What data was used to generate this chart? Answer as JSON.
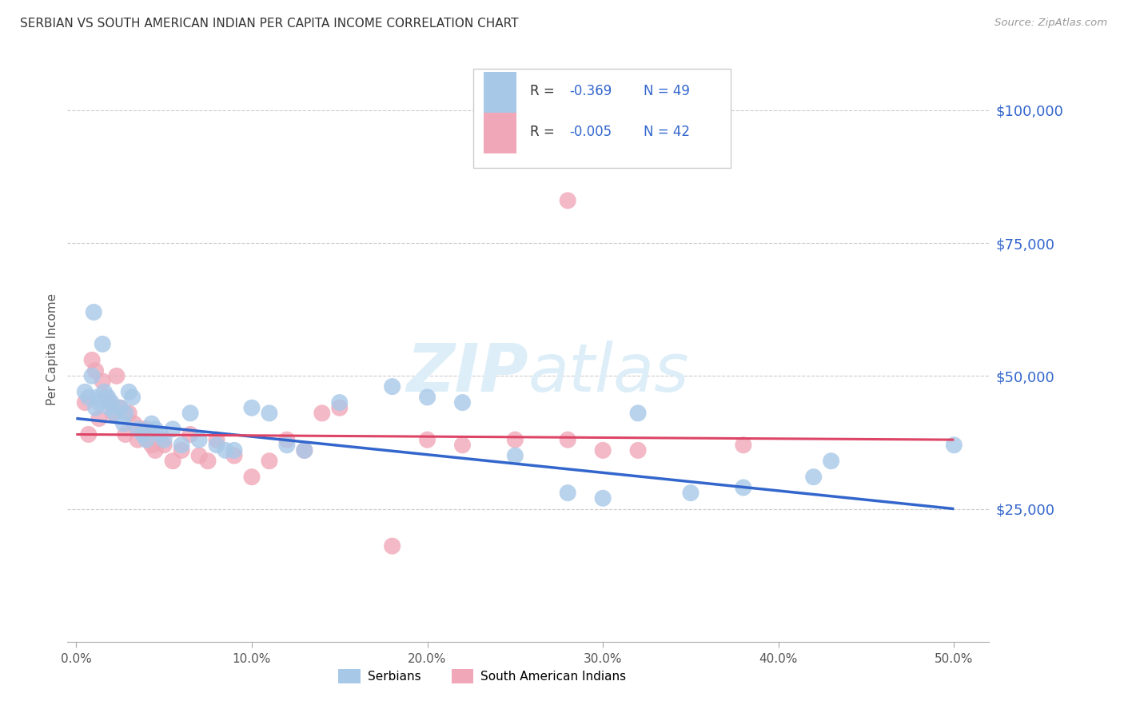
{
  "title": "SERBIAN VS SOUTH AMERICAN INDIAN PER CAPITA INCOME CORRELATION CHART",
  "source": "Source: ZipAtlas.com",
  "ylabel": "Per Capita Income",
  "xlabel_ticks": [
    "0.0%",
    "10.0%",
    "20.0%",
    "30.0%",
    "40.0%",
    "50.0%"
  ],
  "xlabel_vals": [
    0.0,
    0.1,
    0.2,
    0.3,
    0.4,
    0.5
  ],
  "ytick_labels": [
    "$25,000",
    "$50,000",
    "$75,000",
    "$100,000"
  ],
  "ytick_vals": [
    25000,
    50000,
    75000,
    100000
  ],
  "ylim": [
    0,
    110000
  ],
  "xlim": [
    -0.005,
    0.52
  ],
  "r_serbian": -0.369,
  "n_serbian": 49,
  "r_south_american": -0.005,
  "n_south_american": 42,
  "serbian_color": "#a8c8e8",
  "south_american_color": "#f0a8b8",
  "trend_serbian_color": "#3366cc",
  "trend_south_american_color": "#dd4466",
  "watermark_color": "#ddeef8",
  "serbian_points": [
    [
      0.005,
      47000
    ],
    [
      0.007,
      46000
    ],
    [
      0.009,
      50000
    ],
    [
      0.01,
      62000
    ],
    [
      0.011,
      44000
    ],
    [
      0.012,
      46000
    ],
    [
      0.013,
      45000
    ],
    [
      0.015,
      56000
    ],
    [
      0.016,
      47000
    ],
    [
      0.018,
      46000
    ],
    [
      0.019,
      44000
    ],
    [
      0.02,
      45000
    ],
    [
      0.022,
      43000
    ],
    [
      0.025,
      44000
    ],
    [
      0.027,
      41000
    ],
    [
      0.028,
      43000
    ],
    [
      0.03,
      47000
    ],
    [
      0.032,
      46000
    ],
    [
      0.035,
      40000
    ],
    [
      0.038,
      39000
    ],
    [
      0.04,
      38000
    ],
    [
      0.043,
      41000
    ],
    [
      0.045,
      40000
    ],
    [
      0.048,
      39000
    ],
    [
      0.05,
      38000
    ],
    [
      0.055,
      40000
    ],
    [
      0.06,
      37000
    ],
    [
      0.065,
      43000
    ],
    [
      0.07,
      38000
    ],
    [
      0.08,
      37000
    ],
    [
      0.085,
      36000
    ],
    [
      0.09,
      36000
    ],
    [
      0.1,
      44000
    ],
    [
      0.11,
      43000
    ],
    [
      0.12,
      37000
    ],
    [
      0.13,
      36000
    ],
    [
      0.15,
      45000
    ],
    [
      0.18,
      48000
    ],
    [
      0.2,
      46000
    ],
    [
      0.22,
      45000
    ],
    [
      0.25,
      35000
    ],
    [
      0.28,
      28000
    ],
    [
      0.3,
      27000
    ],
    [
      0.32,
      43000
    ],
    [
      0.35,
      28000
    ],
    [
      0.38,
      29000
    ],
    [
      0.42,
      31000
    ],
    [
      0.43,
      34000
    ],
    [
      0.5,
      37000
    ]
  ],
  "south_american_points": [
    [
      0.005,
      45000
    ],
    [
      0.007,
      39000
    ],
    [
      0.009,
      53000
    ],
    [
      0.011,
      51000
    ],
    [
      0.013,
      42000
    ],
    [
      0.015,
      49000
    ],
    [
      0.017,
      46000
    ],
    [
      0.019,
      45000
    ],
    [
      0.021,
      43000
    ],
    [
      0.023,
      50000
    ],
    [
      0.025,
      44000
    ],
    [
      0.028,
      39000
    ],
    [
      0.03,
      43000
    ],
    [
      0.033,
      41000
    ],
    [
      0.035,
      38000
    ],
    [
      0.038,
      40000
    ],
    [
      0.04,
      40000
    ],
    [
      0.043,
      37000
    ],
    [
      0.045,
      36000
    ],
    [
      0.05,
      37000
    ],
    [
      0.055,
      34000
    ],
    [
      0.06,
      36000
    ],
    [
      0.065,
      39000
    ],
    [
      0.07,
      35000
    ],
    [
      0.075,
      34000
    ],
    [
      0.08,
      38000
    ],
    [
      0.09,
      35000
    ],
    [
      0.1,
      31000
    ],
    [
      0.11,
      34000
    ],
    [
      0.12,
      38000
    ],
    [
      0.13,
      36000
    ],
    [
      0.14,
      43000
    ],
    [
      0.15,
      44000
    ],
    [
      0.18,
      18000
    ],
    [
      0.2,
      38000
    ],
    [
      0.22,
      37000
    ],
    [
      0.25,
      38000
    ],
    [
      0.28,
      38000
    ],
    [
      0.3,
      36000
    ],
    [
      0.32,
      36000
    ],
    [
      0.38,
      37000
    ],
    [
      0.28,
      83000
    ]
  ],
  "legend_r_label_color": "#000000",
  "legend_val_color": "#3366cc",
  "legend_n_color": "#3366cc"
}
